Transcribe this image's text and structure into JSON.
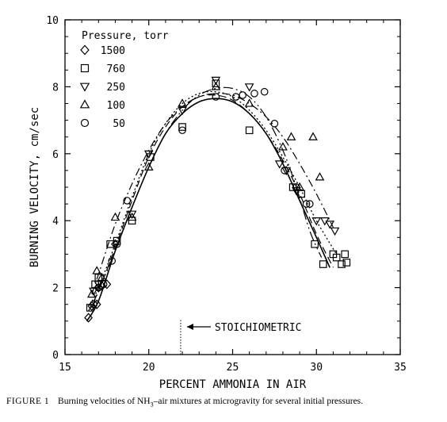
{
  "chart_data": {
    "type": "scatter",
    "xlabel": "PERCENT AMMONIA IN AIR",
    "ylabel": "BURNING VELOCITY, cm/sec",
    "xlim": [
      15,
      35
    ],
    "ylim": [
      0,
      10
    ],
    "xticks": [
      "15",
      "20",
      "25",
      "30",
      "35"
    ],
    "yticks": [
      "0",
      "2",
      "4",
      "6",
      "8",
      "10"
    ],
    "legend_title": "Pressure, torr",
    "legend_position": "top-left",
    "annotation": {
      "text": "STOICHIOMETRIC",
      "x": 21.9
    },
    "series": [
      {
        "name": "1500",
        "marker": "diamond",
        "points": [
          [
            16.4,
            1.1
          ],
          [
            16.6,
            1.45
          ],
          [
            16.9,
            1.5
          ],
          [
            17.0,
            2.0
          ],
          [
            17.2,
            2.05
          ],
          [
            17.5,
            2.1
          ],
          [
            18.0,
            3.3
          ]
        ],
        "curve": [
          [
            16.3,
            1.0
          ],
          [
            17.0,
            1.6
          ],
          [
            18.0,
            3.1
          ],
          [
            19.0,
            4.4
          ],
          [
            20.0,
            5.6
          ],
          [
            21.0,
            6.6
          ],
          [
            22.0,
            7.2
          ],
          [
            23.0,
            7.55
          ],
          [
            24.0,
            7.65
          ],
          [
            25.0,
            7.55
          ],
          [
            26.0,
            7.2
          ],
          [
            27.0,
            6.6
          ],
          [
            28.0,
            5.7
          ],
          [
            29.0,
            4.6
          ],
          [
            30.0,
            3.5
          ],
          [
            30.8,
            2.6
          ]
        ]
      },
      {
        "name": "760",
        "marker": "square",
        "points": [
          [
            16.5,
            1.4
          ],
          [
            16.8,
            2.1
          ],
          [
            17.0,
            2.3
          ],
          [
            17.7,
            3.3
          ],
          [
            18.1,
            3.4
          ],
          [
            19.0,
            4.0
          ],
          [
            20.1,
            5.9
          ],
          [
            22.0,
            6.8
          ],
          [
            24.0,
            8.1
          ],
          [
            26.0,
            6.7
          ],
          [
            28.6,
            5.0
          ],
          [
            29.1,
            4.8
          ],
          [
            29.9,
            3.3
          ],
          [
            30.4,
            2.7
          ],
          [
            31.0,
            3.0
          ],
          [
            31.2,
            2.9
          ],
          [
            31.5,
            2.7
          ],
          [
            31.7,
            3.0
          ],
          [
            31.8,
            2.75
          ]
        ],
        "curve": [
          [
            16.4,
            1.3
          ],
          [
            17.0,
            1.9
          ],
          [
            18.0,
            3.2
          ],
          [
            19.0,
            4.6
          ],
          [
            20.0,
            5.9
          ],
          [
            21.0,
            6.8
          ],
          [
            22.0,
            7.4
          ],
          [
            23.0,
            7.7
          ],
          [
            24.0,
            7.75
          ],
          [
            25.0,
            7.6
          ],
          [
            26.0,
            7.2
          ],
          [
            27.0,
            6.6
          ],
          [
            28.0,
            5.8
          ],
          [
            29.0,
            4.8
          ],
          [
            30.0,
            3.6
          ],
          [
            31.0,
            2.6
          ]
        ]
      },
      {
        "name": "250",
        "marker": "triangle-down",
        "points": [
          [
            16.7,
            1.9
          ],
          [
            17.0,
            2.1
          ],
          [
            19.0,
            4.2
          ],
          [
            20.0,
            6.0
          ],
          [
            22.0,
            7.3
          ],
          [
            24.0,
            8.2
          ],
          [
            26.0,
            8.0
          ],
          [
            27.8,
            5.7
          ],
          [
            28.2,
            5.5
          ],
          [
            28.8,
            4.9
          ],
          [
            30.0,
            4.0
          ],
          [
            30.5,
            4.0
          ],
          [
            30.8,
            3.9
          ],
          [
            31.1,
            3.7
          ]
        ],
        "curve": [
          [
            16.5,
            1.5
          ],
          [
            17.0,
            2.0
          ],
          [
            18.0,
            3.3
          ],
          [
            19.0,
            4.7
          ],
          [
            20.0,
            6.0
          ],
          [
            21.0,
            6.9
          ],
          [
            22.0,
            7.5
          ],
          [
            23.0,
            7.8
          ],
          [
            24.0,
            7.85
          ],
          [
            25.0,
            7.7
          ],
          [
            26.0,
            7.3
          ],
          [
            27.0,
            6.7
          ],
          [
            28.0,
            5.9
          ],
          [
            29.0,
            5.0
          ],
          [
            30.0,
            4.0
          ],
          [
            31.2,
            3.0
          ]
        ]
      },
      {
        "name": "100",
        "marker": "triangle-up",
        "points": [
          [
            16.6,
            1.8
          ],
          [
            16.9,
            2.5
          ],
          [
            17.2,
            2.3
          ],
          [
            18.0,
            4.1
          ],
          [
            19.0,
            4.1
          ],
          [
            20.0,
            5.6
          ],
          [
            22.0,
            7.5
          ],
          [
            24.0,
            8.0
          ],
          [
            26.0,
            7.5
          ],
          [
            28.0,
            6.2
          ],
          [
            28.5,
            6.5
          ],
          [
            29.0,
            5.0
          ],
          [
            29.8,
            6.5
          ],
          [
            30.2,
            5.3
          ]
        ],
        "curve": [
          [
            16.6,
            1.8
          ],
          [
            17.0,
            2.4
          ],
          [
            18.0,
            3.9
          ],
          [
            19.0,
            5.1
          ],
          [
            20.0,
            6.1
          ],
          [
            21.0,
            6.9
          ],
          [
            22.0,
            7.4
          ],
          [
            23.0,
            7.7
          ],
          [
            24.0,
            7.8
          ],
          [
            25.0,
            7.75
          ],
          [
            26.0,
            7.5
          ],
          [
            27.0,
            7.1
          ],
          [
            28.0,
            6.5
          ],
          [
            29.0,
            5.7
          ],
          [
            30.0,
            4.8
          ],
          [
            31.0,
            3.8
          ]
        ]
      },
      {
        "name": "50",
        "marker": "circle",
        "points": [
          [
            16.7,
            1.5
          ],
          [
            17.0,
            2.0
          ],
          [
            17.3,
            2.1
          ],
          [
            17.8,
            2.8
          ],
          [
            18.1,
            3.3
          ],
          [
            18.7,
            4.6
          ],
          [
            22.0,
            6.7
          ],
          [
            24.0,
            7.7
          ],
          [
            25.2,
            7.7
          ],
          [
            25.6,
            7.75
          ],
          [
            26.3,
            7.8
          ],
          [
            26.9,
            7.85
          ],
          [
            27.5,
            6.9
          ],
          [
            28.1,
            5.5
          ],
          [
            28.8,
            5.0
          ],
          [
            29.4,
            4.5
          ],
          [
            29.6,
            4.5
          ]
        ],
        "curve": [
          [
            16.6,
            1.4
          ],
          [
            17.0,
            1.9
          ],
          [
            18.0,
            3.1
          ],
          [
            19.0,
            4.4
          ],
          [
            20.0,
            5.6
          ],
          [
            21.0,
            6.6
          ],
          [
            22.0,
            7.3
          ],
          [
            23.0,
            7.75
          ],
          [
            24.0,
            7.95
          ],
          [
            25.0,
            7.95
          ],
          [
            26.0,
            7.7
          ],
          [
            27.0,
            7.1
          ],
          [
            28.0,
            6.1
          ],
          [
            28.8,
            5.0
          ],
          [
            29.6,
            3.7
          ],
          [
            30.3,
            2.9
          ]
        ]
      }
    ]
  },
  "caption": {
    "figure_label": "FIGURE 1",
    "text_before": "Burning velocities of NH",
    "subscript": "3",
    "text_after": "–air mixtures at microgravity for several initial pressures."
  }
}
